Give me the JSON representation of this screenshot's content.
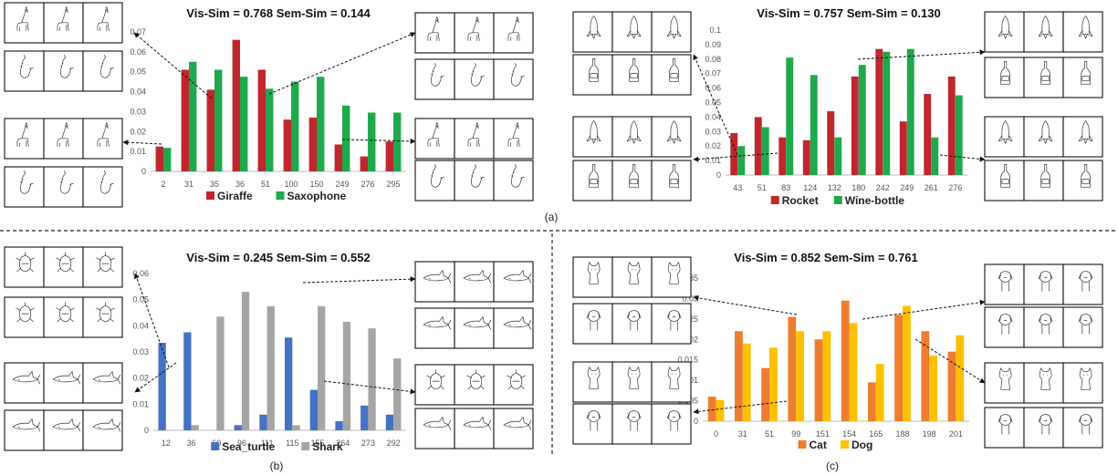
{
  "captions": [
    "(a)",
    "(b)",
    "(c)"
  ],
  "chart_data": [
    {
      "type": "bar",
      "title": "Vis-Sim = 0.768  Sem-Sim = 0.144",
      "categories": [
        "2",
        "31",
        "35",
        "36",
        "51",
        "100",
        "150",
        "249",
        "276",
        "295"
      ],
      "ylim": [
        0,
        0.07
      ],
      "yticks": [
        "0",
        "0.01",
        "0.02",
        "0.03",
        "0.04",
        "0.05",
        "0.06",
        "0.07"
      ],
      "grid": false,
      "legend_position": "bottom",
      "series": [
        {
          "name": "Giraffe",
          "color": "#C0272D",
          "values": [
            0.0125,
            0.051,
            0.041,
            0.066,
            0.051,
            0.026,
            0.027,
            0.0135,
            0.0075,
            0.015
          ]
        },
        {
          "name": "Saxophone",
          "color": "#1FA84C",
          "values": [
            0.0118,
            0.055,
            0.051,
            0.0475,
            0.0415,
            0.045,
            0.0475,
            0.033,
            0.0295,
            0.0295
          ]
        }
      ]
    },
    {
      "type": "bar",
      "title": "Vis-Sim = 0.757  Sem-Sim = 0.130",
      "categories": [
        "43",
        "51",
        "83",
        "124",
        "132",
        "180",
        "242",
        "249",
        "261",
        "276"
      ],
      "ylim": [
        0,
        0.1
      ],
      "yticks": [
        "0",
        "0.01",
        "0.02",
        "0.03",
        "0.04",
        "0.05",
        "0.06",
        "0.07",
        "0.08",
        "0.09",
        "0.1"
      ],
      "grid": false,
      "legend_position": "bottom",
      "series": [
        {
          "name": "Rocket",
          "color": "#C0272D",
          "values": [
            0.029,
            0.04,
            0.026,
            0.024,
            0.044,
            0.068,
            0.087,
            0.037,
            0.056,
            0.068
          ]
        },
        {
          "name": "Wine-bottle",
          "color": "#1FA84C",
          "values": [
            0.02,
            0.033,
            0.081,
            0.069,
            0.026,
            0.076,
            0.085,
            0.087,
            0.026,
            0.055
          ]
        }
      ]
    },
    {
      "type": "bar",
      "title": "Vis-Sim = 0.245  Sem-Sim = 0.552",
      "categories": [
        "12",
        "36",
        "60",
        "96",
        "111",
        "115",
        "155",
        "264",
        "273",
        "292"
      ],
      "ylim": [
        0,
        0.06
      ],
      "yticks": [
        "0",
        "0.01",
        "0.02",
        "0.03",
        "0.04",
        "0.05",
        "0.06"
      ],
      "grid": false,
      "legend_position": "bottom",
      "series": [
        {
          "name": "Sea_turtle",
          "color": "#4472C4",
          "values": [
            0.0335,
            0.0375,
            0,
            0.002,
            0.006,
            0.0355,
            0.0155,
            0.0035,
            0.0095,
            0.006
          ]
        },
        {
          "name": "Shark",
          "color": "#A5A5A5",
          "values": [
            0,
            0.002,
            0.0435,
            0.053,
            0.0475,
            0.002,
            0.0475,
            0.0415,
            0.039,
            0.0275
          ]
        }
      ]
    },
    {
      "type": "bar",
      "title": "Vis-Sim = 0.852  Sem-Sim = 0.761",
      "categories": [
        "0",
        "31",
        "51",
        "99",
        "151",
        "154",
        "165",
        "188",
        "198",
        "201"
      ],
      "ylim": [
        0,
        0.035
      ],
      "yticks": [
        "0",
        "0.005",
        "0.01",
        "0.015",
        "0.02",
        "0.025",
        "0.03",
        "0.035"
      ],
      "grid": false,
      "legend_position": "bottom",
      "series": [
        {
          "name": "Cat",
          "color": "#ED7D31",
          "values": [
            0.006,
            0.022,
            0.013,
            0.0255,
            0.02,
            0.0295,
            0.0095,
            0.026,
            0.022,
            0.017
          ]
        },
        {
          "name": "Dog",
          "color": "#FFC000",
          "values": [
            0.0052,
            0.019,
            0.018,
            0.022,
            0.022,
            0.024,
            0.014,
            0.0282,
            0.016,
            0.021
          ]
        }
      ]
    }
  ],
  "thumbnail_rows": [
    {
      "subject": "giraffe",
      "icon": "giraffe-icon"
    },
    {
      "subject": "saxophone",
      "icon": "saxophone-icon"
    },
    {
      "subject": "giraffe",
      "icon": "giraffe-icon"
    },
    {
      "subject": "saxophone",
      "icon": "saxophone-icon"
    },
    {
      "subject": "giraffe",
      "icon": "giraffe-icon"
    },
    {
      "subject": "saxophone",
      "icon": "saxophone-icon"
    },
    {
      "subject": "giraffe",
      "icon": "giraffe-icon"
    },
    {
      "subject": "saxophone",
      "icon": "saxophone-icon"
    },
    {
      "subject": "rocket",
      "icon": "rocket-icon"
    },
    {
      "subject": "wine-bottle",
      "icon": "wine-bottle-icon"
    },
    {
      "subject": "rocket",
      "icon": "rocket-icon"
    },
    {
      "subject": "wine-bottle",
      "icon": "wine-bottle-icon"
    },
    {
      "subject": "rocket",
      "icon": "rocket-icon"
    },
    {
      "subject": "wine-bottle",
      "icon": "wine-bottle-icon"
    },
    {
      "subject": "rocket",
      "icon": "rocket-icon"
    },
    {
      "subject": "wine-bottle",
      "icon": "wine-bottle-icon"
    },
    {
      "subject": "sea-turtle",
      "icon": "sea-turtle-icon"
    },
    {
      "subject": "sea-turtle",
      "icon": "sea-turtle-icon"
    },
    {
      "subject": "shark",
      "icon": "shark-icon"
    },
    {
      "subject": "shark",
      "icon": "shark-icon"
    },
    {
      "subject": "shark",
      "icon": "shark-icon"
    },
    {
      "subject": "shark",
      "icon": "shark-icon"
    },
    {
      "subject": "sea-turtle",
      "icon": "sea-turtle-icon"
    },
    {
      "subject": "shark",
      "icon": "shark-icon"
    },
    {
      "subject": "cat",
      "icon": "cat-icon"
    },
    {
      "subject": "dog",
      "icon": "dog-icon"
    },
    {
      "subject": "cat",
      "icon": "cat-icon"
    },
    {
      "subject": "dog",
      "icon": "dog-icon"
    },
    {
      "subject": "dog",
      "icon": "dog-icon"
    },
    {
      "subject": "dog",
      "icon": "dog-icon"
    },
    {
      "subject": "cat",
      "icon": "cat-icon"
    },
    {
      "subject": "dog",
      "icon": "dog-icon"
    }
  ]
}
